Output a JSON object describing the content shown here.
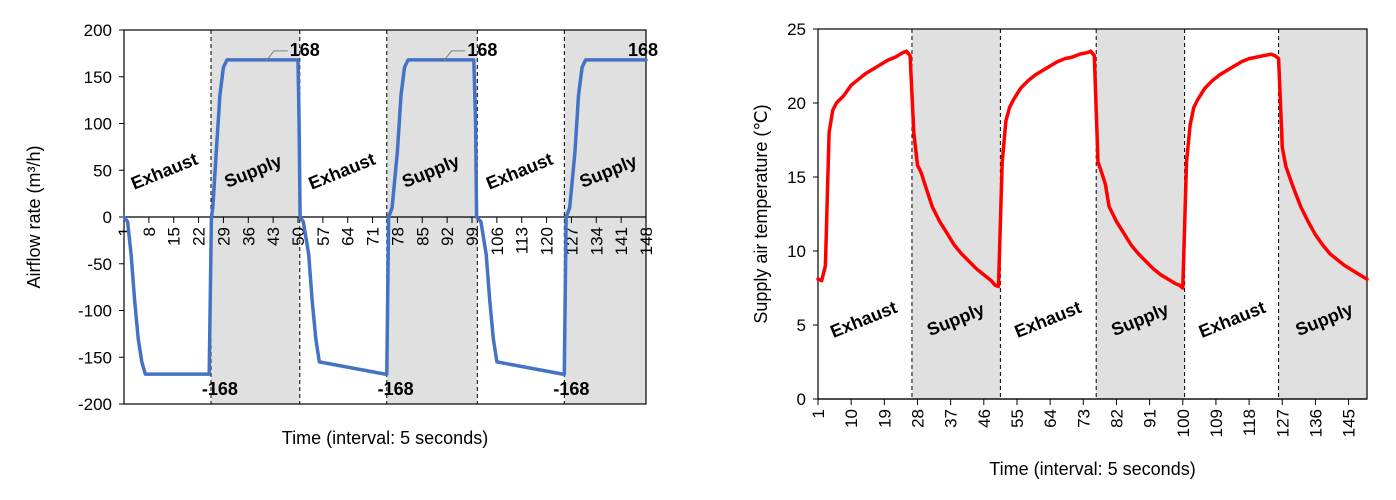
{
  "chart_data": [
    {
      "type": "line",
      "xlabel": "Time (interval: 5 seconds)",
      "ylabel": "Airflow rate (m³/h)",
      "ylim": [
        -200,
        200
      ],
      "yticks": [
        200,
        150,
        100,
        50,
        0,
        -50,
        -100,
        -150,
        -200
      ],
      "xlim": [
        1,
        148
      ],
      "xticks": [
        1,
        8,
        15,
        22,
        29,
        36,
        43,
        50,
        57,
        64,
        71,
        78,
        85,
        92,
        99,
        106,
        113,
        120,
        127,
        134,
        141,
        148
      ],
      "grid": false,
      "line_color": "#4472C4",
      "shade_color": "#E0E0E0",
      "shaded_ranges": [
        [
          25.5,
          50.5
        ],
        [
          75,
          100.5
        ],
        [
          125,
          148
        ]
      ],
      "phase_boundaries": [
        25.5,
        50.5,
        75,
        100.5,
        125
      ],
      "phase_labels": [
        {
          "text": "Exhaust",
          "x": 13,
          "y": 43
        },
        {
          "text": "Supply",
          "x": 38,
          "y": 43
        },
        {
          "text": "Exhaust",
          "x": 63,
          "y": 43
        },
        {
          "text": "Supply",
          "x": 88,
          "y": 43
        },
        {
          "text": "Exhaust",
          "x": 113,
          "y": 43
        },
        {
          "text": "Supply",
          "x": 138,
          "y": 43
        }
      ],
      "data_labels": [
        {
          "text": "168",
          "x": 50.5,
          "y": 168,
          "leader_from": 41
        },
        {
          "text": "168",
          "x": 100.5,
          "y": 168,
          "leader_from": 91
        },
        {
          "text": "168",
          "x": 148,
          "y": 168
        },
        {
          "text": "-168",
          "x": 28,
          "y": -168
        },
        {
          "text": "-168",
          "x": 77.5,
          "y": -168
        },
        {
          "text": "-168",
          "x": 127,
          "y": -168
        }
      ],
      "series": [
        {
          "x": [
            1,
            2,
            3,
            4,
            5,
            6,
            7,
            25,
            25.6,
            26,
            27,
            28,
            29,
            30,
            31,
            50,
            50.3,
            50.6,
            51.5,
            53,
            54,
            55,
            56,
            74.5,
            75,
            75.5,
            76.5,
            78,
            79,
            80,
            81,
            99.5,
            100,
            100.3,
            101.5,
            103,
            104,
            105,
            106,
            124.5,
            125,
            125.5,
            126.5,
            128,
            129,
            130,
            131,
            148
          ],
          "y": [
            0,
            -5,
            -40,
            -90,
            -130,
            -155,
            -168,
            -168,
            0,
            10,
            70,
            130,
            160,
            168,
            168,
            168,
            100,
            0,
            -5,
            -40,
            -90,
            -130,
            -155,
            -168,
            -168,
            0,
            10,
            70,
            130,
            160,
            168,
            168,
            100,
            0,
            -5,
            -40,
            -90,
            -130,
            -155,
            -168,
            -168,
            0,
            10,
            70,
            130,
            160,
            168,
            168
          ]
        }
      ]
    },
    {
      "type": "line",
      "xlabel": "Time (interval: 5 seconds)",
      "ylabel": "Supply air temperature (℃)",
      "ylim": [
        0,
        25
      ],
      "yticks": [
        25,
        20,
        15,
        10,
        5,
        0
      ],
      "xlim": [
        1,
        150
      ],
      "xticks": [
        1,
        10,
        19,
        28,
        37,
        46,
        55,
        64,
        73,
        82,
        91,
        100,
        109,
        118,
        127,
        136,
        145
      ],
      "grid": false,
      "line_color": "#FF0000",
      "shade_color": "#E0E0E0",
      "shaded_ranges": [
        [
          26.5,
          50.5
        ],
        [
          76.5,
          100.5
        ],
        [
          126,
          150
        ]
      ],
      "phase_boundaries": [
        26.5,
        50.5,
        76.5,
        100.5,
        126
      ],
      "phase_labels": [
        {
          "text": "Exhaust",
          "x": 14,
          "y": 5
        },
        {
          "text": "Supply",
          "x": 39,
          "y": 5
        },
        {
          "text": "Exhaust",
          "x": 64,
          "y": 5
        },
        {
          "text": "Supply",
          "x": 89,
          "y": 5
        },
        {
          "text": "Exhaust",
          "x": 114,
          "y": 5
        },
        {
          "text": "Supply",
          "x": 139,
          "y": 5
        }
      ],
      "series": [
        {
          "x": [
            1,
            2,
            3,
            4,
            5,
            6,
            8,
            10,
            12,
            14,
            16,
            18,
            20,
            22,
            24,
            25,
            26,
            27,
            28,
            29,
            30,
            32,
            34,
            36,
            38,
            40,
            42,
            44,
            46,
            48,
            49,
            50,
            51,
            52,
            53,
            54,
            55,
            56,
            58,
            60,
            62,
            64,
            66,
            68,
            70,
            72,
            74,
            75,
            76,
            77,
            78,
            79,
            80,
            82,
            84,
            86,
            88,
            90,
            92,
            94,
            96,
            98,
            99,
            100,
            101,
            102,
            103,
            104,
            105,
            106,
            108,
            110,
            112,
            114,
            116,
            118,
            120,
            122,
            124,
            125,
            126,
            127,
            128,
            129,
            130,
            132,
            134,
            136,
            138,
            140,
            142,
            144,
            146,
            148,
            150
          ],
          "y": [
            8.1,
            8.0,
            9.0,
            18.0,
            19.5,
            20.0,
            20.5,
            21.2,
            21.6,
            22.0,
            22.3,
            22.6,
            22.9,
            23.1,
            23.4,
            23.5,
            23.2,
            18.0,
            15.8,
            15.3,
            14.5,
            13.0,
            12.0,
            11.2,
            10.4,
            9.8,
            9.3,
            8.8,
            8.4,
            8.0,
            7.7,
            7.6,
            16.0,
            18.8,
            19.7,
            20.2,
            20.6,
            21.0,
            21.5,
            21.9,
            22.2,
            22.5,
            22.8,
            23.0,
            23.1,
            23.3,
            23.4,
            23.5,
            23.2,
            16.0,
            15.3,
            14.5,
            13.0,
            12.0,
            11.2,
            10.4,
            9.8,
            9.3,
            8.8,
            8.4,
            8.1,
            7.8,
            7.7,
            7.5,
            16.0,
            18.5,
            19.7,
            20.2,
            20.6,
            21.0,
            21.5,
            21.9,
            22.2,
            22.5,
            22.8,
            23.0,
            23.1,
            23.2,
            23.3,
            23.2,
            23.0,
            17.0,
            15.7,
            15.0,
            14.3,
            13.0,
            12.0,
            11.1,
            10.4,
            9.8,
            9.4,
            9.0,
            8.7,
            8.4,
            8.1
          ]
        }
      ]
    }
  ]
}
